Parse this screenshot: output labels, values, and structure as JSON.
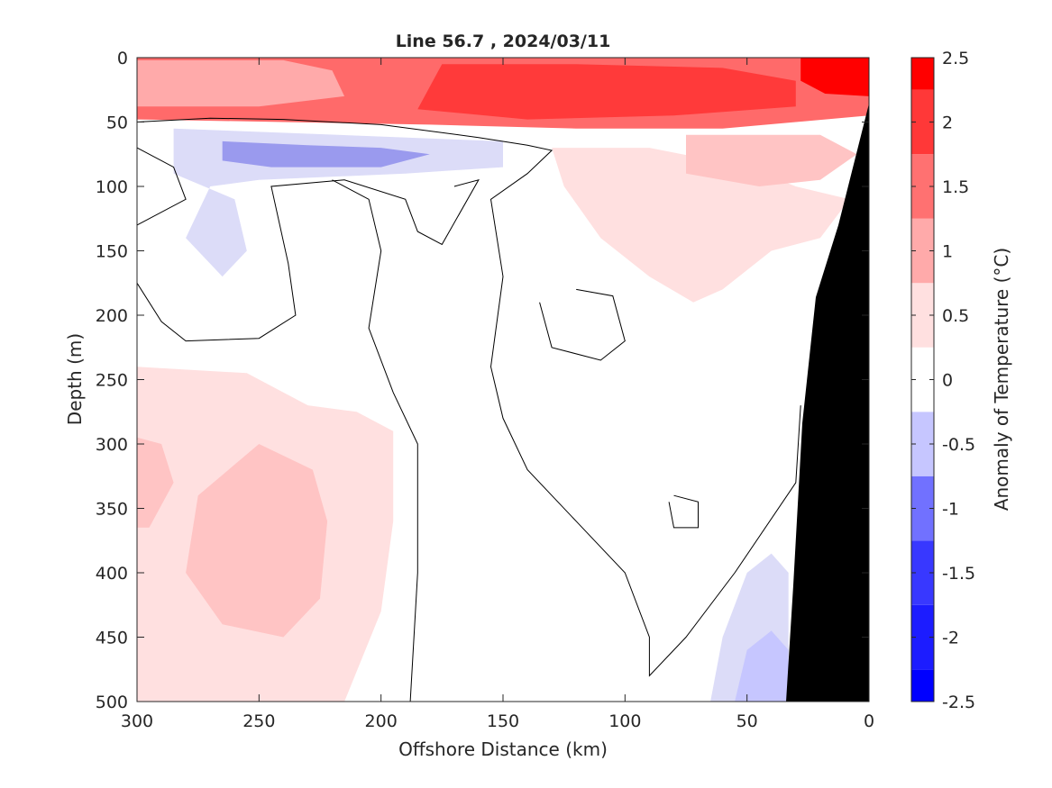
{
  "chart_data": {
    "type": "heatmap",
    "title": "Line 56.7 , 2024/03/11",
    "xlabel": "Offshore Distance (km)",
    "ylabel": "Depth (m)",
    "xlim": [
      300,
      0
    ],
    "ylim": [
      500,
      0
    ],
    "x_reversed": true,
    "y_reversed": true,
    "x_ticks": [
      300,
      250,
      200,
      150,
      100,
      50,
      0
    ],
    "y_ticks": [
      0,
      50,
      100,
      150,
      200,
      250,
      300,
      350,
      400,
      450,
      500
    ],
    "colorbar": {
      "label": "Anomaly of Temperature (°C)",
      "range": [
        -2.5,
        2.5
      ],
      "ticks": [
        -2.5,
        -2,
        -1.5,
        -1,
        -0.5,
        0,
        0.5,
        1,
        1.5,
        2,
        2.5
      ],
      "levels": [
        {
          "from": -2.5,
          "to": -2.25,
          "color": "#0000ff"
        },
        {
          "from": -2.25,
          "to": -1.75,
          "color": "#1c1cff"
        },
        {
          "from": -1.75,
          "to": -1.25,
          "color": "#3838ff"
        },
        {
          "from": -1.25,
          "to": -0.75,
          "color": "#7171ff"
        },
        {
          "from": -0.75,
          "to": -0.25,
          "color": "#c6c6ff"
        },
        {
          "from": -0.25,
          "to": 0.25,
          "color": "#ffffff"
        },
        {
          "from": 0.25,
          "to": 0.75,
          "color": "#ffe0e0"
        },
        {
          "from": 0.75,
          "to": 1.25,
          "color": "#ffaaaa"
        },
        {
          "from": 1.25,
          "to": 1.75,
          "color": "#ff7171"
        },
        {
          "from": 1.75,
          "to": 2.25,
          "color": "#ff3838"
        },
        {
          "from": 2.25,
          "to": 2.5,
          "color": "#ff0000"
        }
      ]
    },
    "regions": [
      {
        "name": "surface-warm-layer-upper",
        "anomaly": 1.5,
        "color": "#ff6a6a",
        "points": [
          [
            300,
            0
          ],
          [
            0,
            0
          ],
          [
            0,
            45
          ],
          [
            60,
            55
          ],
          [
            120,
            55
          ],
          [
            180,
            52
          ],
          [
            240,
            50
          ],
          [
            300,
            48
          ]
        ]
      },
      {
        "name": "surface-warm-layer-core",
        "anomaly": 2.0,
        "color": "#ff3a3a",
        "points": [
          [
            175,
            5
          ],
          [
            120,
            5
          ],
          [
            60,
            8
          ],
          [
            30,
            18
          ],
          [
            30,
            38
          ],
          [
            80,
            45
          ],
          [
            140,
            48
          ],
          [
            185,
            40
          ]
        ]
      },
      {
        "name": "nearshore-warm-core",
        "anomaly": 2.5,
        "color": "#ff0000",
        "points": [
          [
            28,
            0
          ],
          [
            0,
            0
          ],
          [
            0,
            30
          ],
          [
            18,
            28
          ],
          [
            28,
            18
          ]
        ]
      },
      {
        "name": "surface-warm-patch-west",
        "anomaly": 1.0,
        "color": "#ffaaaa",
        "points": [
          [
            300,
            2
          ],
          [
            240,
            2
          ],
          [
            220,
            10
          ],
          [
            215,
            30
          ],
          [
            250,
            38
          ],
          [
            300,
            38
          ]
        ]
      },
      {
        "name": "subsurface-warm-band-east",
        "anomaly": 0.5,
        "color": "#ffe0e0",
        "points": [
          [
            130,
            70
          ],
          [
            90,
            70
          ],
          [
            50,
            85
          ],
          [
            30,
            100
          ],
          [
            8,
            110
          ],
          [
            20,
            140
          ],
          [
            40,
            150
          ],
          [
            60,
            180
          ],
          [
            72,
            190
          ],
          [
            90,
            170
          ],
          [
            110,
            140
          ],
          [
            125,
            100
          ]
        ]
      },
      {
        "name": "subsurface-warm-band-east-inner",
        "anomaly": 1.0,
        "color": "#ffc4c4",
        "points": [
          [
            75,
            60
          ],
          [
            20,
            60
          ],
          [
            5,
            75
          ],
          [
            20,
            95
          ],
          [
            45,
            100
          ],
          [
            75,
            90
          ]
        ]
      },
      {
        "name": "cool-lens-west",
        "anomaly": -0.5,
        "color": "#dcdcf8",
        "points": [
          [
            285,
            55
          ],
          [
            150,
            65
          ],
          [
            150,
            85
          ],
          [
            190,
            90
          ],
          [
            250,
            95
          ],
          [
            270,
            100
          ],
          [
            280,
            140
          ],
          [
            265,
            170
          ],
          [
            255,
            150
          ],
          [
            260,
            110
          ],
          [
            285,
            90
          ]
        ]
      },
      {
        "name": "cool-lens-west-core",
        "anomaly": -0.75,
        "color": "#9a9aee",
        "points": [
          [
            265,
            65
          ],
          [
            230,
            68
          ],
          [
            200,
            70
          ],
          [
            180,
            75
          ],
          [
            200,
            85
          ],
          [
            245,
            85
          ],
          [
            265,
            80
          ]
        ]
      },
      {
        "name": "deep-warm-patch-west",
        "anomaly": 0.5,
        "color": "#ffe0e0",
        "points": [
          [
            300,
            240
          ],
          [
            255,
            245
          ],
          [
            230,
            270
          ],
          [
            210,
            275
          ],
          [
            195,
            290
          ],
          [
            195,
            360
          ],
          [
            200,
            430
          ],
          [
            215,
            500
          ],
          [
            300,
            500
          ]
        ]
      },
      {
        "name": "deep-warm-core-west",
        "anomaly": 0.75,
        "color": "#ffc4c4",
        "points": [
          [
            250,
            300
          ],
          [
            228,
            320
          ],
          [
            222,
            360
          ],
          [
            225,
            420
          ],
          [
            240,
            450
          ],
          [
            265,
            440
          ],
          [
            280,
            400
          ],
          [
            275,
            340
          ]
        ]
      },
      {
        "name": "deep-warm-core-edge",
        "anomaly": 0.75,
        "color": "#ffc4c4",
        "points": [
          [
            300,
            295
          ],
          [
            290,
            300
          ],
          [
            285,
            330
          ],
          [
            295,
            365
          ],
          [
            300,
            365
          ]
        ]
      },
      {
        "name": "deep-cool-patch-nearshore",
        "anomaly": -0.5,
        "color": "#dcdcf8",
        "points": [
          [
            65,
            500
          ],
          [
            60,
            450
          ],
          [
            50,
            400
          ],
          [
            40,
            385
          ],
          [
            33,
            400
          ],
          [
            33,
            500
          ]
        ]
      },
      {
        "name": "deep-cool-core-nearshore",
        "anomaly": -0.75,
        "color": "#c6c6ff",
        "points": [
          [
            55,
            500
          ],
          [
            50,
            460
          ],
          [
            40,
            445
          ],
          [
            33,
            460
          ],
          [
            33,
            500
          ]
        ]
      }
    ],
    "zero_contours": [
      {
        "name": "zero-contour-mixed-layer",
        "points": [
          [
            300,
            50
          ],
          [
            270,
            47
          ],
          [
            240,
            48
          ],
          [
            200,
            52
          ],
          [
            160,
            62
          ],
          [
            140,
            68
          ],
          [
            130,
            72
          ],
          [
            140,
            90
          ],
          [
            155,
            110
          ],
          [
            150,
            170
          ],
          [
            155,
            240
          ],
          [
            150,
            280
          ],
          [
            140,
            320
          ],
          [
            120,
            360
          ],
          [
            100,
            400
          ],
          [
            90,
            450
          ],
          [
            90,
            480
          ],
          [
            75,
            450
          ],
          [
            55,
            400
          ],
          [
            30,
            330
          ],
          [
            28,
            270
          ]
        ]
      },
      {
        "name": "zero-contour-west",
        "points": [
          [
            300,
            70
          ],
          [
            285,
            85
          ],
          [
            280,
            110
          ],
          [
            300,
            130
          ]
        ]
      },
      {
        "name": "zero-contour-mid",
        "points": [
          [
            220,
            95
          ],
          [
            205,
            110
          ],
          [
            200,
            150
          ],
          [
            205,
            210
          ],
          [
            195,
            260
          ],
          [
            185,
            300
          ],
          [
            185,
            400
          ],
          [
            188,
            500
          ]
        ]
      },
      {
        "name": "zero-contour-loop-west",
        "points": [
          [
            300,
            175
          ],
          [
            290,
            205
          ],
          [
            280,
            220
          ],
          [
            250,
            218
          ],
          [
            235,
            200
          ],
          [
            238,
            160
          ],
          [
            245,
            100
          ],
          [
            215,
            95
          ],
          [
            190,
            110
          ],
          [
            185,
            135
          ],
          [
            175,
            145
          ],
          [
            160,
            95
          ],
          [
            170,
            100
          ]
        ]
      },
      {
        "name": "zero-contour-eddy-center",
        "points": [
          [
            120,
            180
          ],
          [
            105,
            185
          ],
          [
            100,
            220
          ],
          [
            110,
            235
          ],
          [
            130,
            225
          ],
          [
            135,
            190
          ]
        ]
      },
      {
        "name": "zero-contour-eddy-small",
        "points": [
          [
            80,
            340
          ],
          [
            70,
            345
          ],
          [
            70,
            365
          ],
          [
            80,
            365
          ],
          [
            82,
            345
          ]
        ]
      }
    ],
    "land_mask_color": "#000000"
  }
}
